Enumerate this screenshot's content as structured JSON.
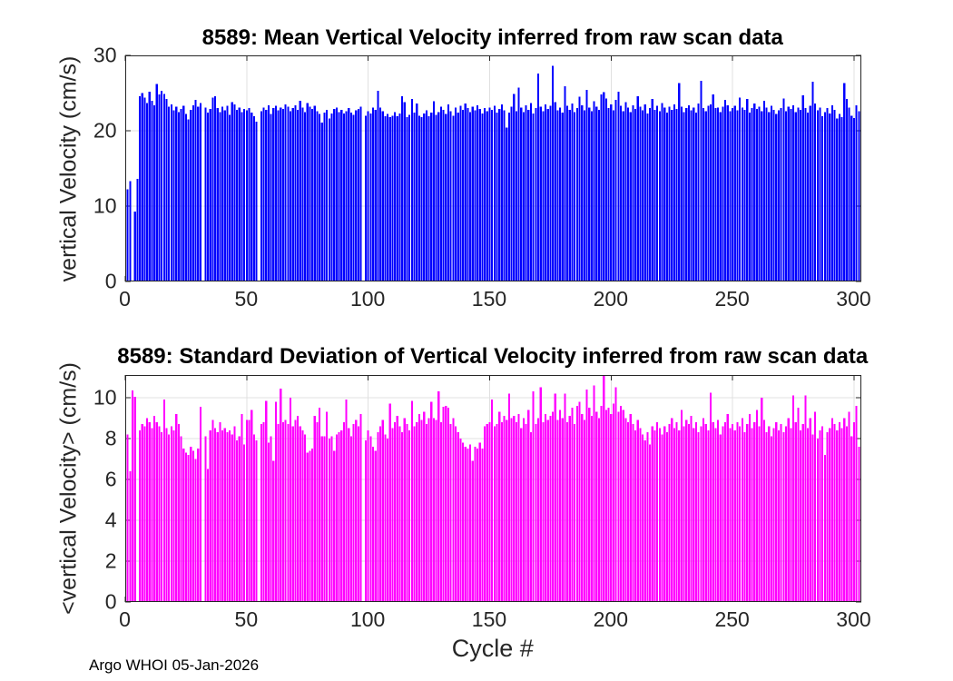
{
  "figure": {
    "footer": "Argo WHOI 05-Jan-2026"
  },
  "chart_data": [
    {
      "type": "bar",
      "title": "8589: Mean Vertical Velocity inferred from raw scan data",
      "xlabel": "",
      "ylabel": "vertical Velocity (cm/s)",
      "bar_color": "#0000FF",
      "grid": true,
      "legend_position": "none",
      "xlim": [
        0,
        303
      ],
      "ylim": [
        0,
        30
      ],
      "xticks": [
        0,
        50,
        100,
        150,
        200,
        250,
        300
      ],
      "yticks": [
        0,
        10,
        20,
        30
      ],
      "x_is_cycle_number": true,
      "first_cycle": 1,
      "values": [
        12.2,
        13.3,
        0,
        9.3,
        13.6,
        24.6,
        25.0,
        24.4,
        23.7,
        25.2,
        24.0,
        23.4,
        26.2,
        24.8,
        25.3,
        24.9,
        24.2,
        23.2,
        23.5,
        22.7,
        23.2,
        22.5,
        22.9,
        23.3,
        22.2,
        21.5,
        22.8,
        23.4,
        24.1,
        23.2,
        23.7,
        0,
        23.1,
        22.4,
        22.9,
        24.4,
        24.6,
        23.0,
        22.5,
        23.2,
        22.7,
        23.3,
        22.1,
        23.8,
        23.5,
        22.8,
        23.1,
        22.5,
        22.9,
        22.7,
        23.0,
        22.4,
        21.9,
        21.2,
        0,
        22.6,
        23.1,
        22.8,
        23.4,
        22.2,
        23.0,
        23.3,
        22.7,
        23.1,
        22.9,
        23.5,
        23.2,
        22.6,
        23.0,
        23.4,
        22.8,
        24.0,
        23.1,
        22.5,
        23.7,
        23.2,
        22.9,
        23.3,
        22.6,
        22.2,
        21.1,
        22.4,
        22.8,
        21.6,
        22.3,
        22.9,
        23.1,
        22.5,
        22.8,
        22.3,
        22.6,
        23.0,
        22.4,
        22.1,
        22.7,
        22.9,
        23.2,
        0,
        22.0,
        22.6,
        22.3,
        23.1,
        22.8,
        25.3,
        23.1,
        22.6,
        21.9,
        22.2,
        21.8,
        22.0,
        22.5,
        21.9,
        22.3,
        24.6,
        23.8,
        21.8,
        22.1,
        24.2,
        22.4,
        23.6,
        22.0,
        21.8,
        22.3,
        22.7,
        21.9,
        22.4,
        23.9,
        22.1,
        22.5,
        23.2,
        22.8,
        22.2,
        23.5,
        22.6,
        22.0,
        23.1,
        22.4,
        23.3,
        22.8,
        23.6,
        23.0,
        22.5,
        23.2,
        22.7,
        23.4,
        22.9,
        22.3,
        23.0,
        22.6,
        23.1,
        22.8,
        23.3,
        22.4,
        22.9,
        23.5,
        22.7,
        20.4,
        22.4,
        23.2,
        24.9,
        22.6,
        25.7,
        23.1,
        22.5,
        23.4,
        22.8,
        23.7,
        22.3,
        23.0,
        27.6,
        23.2,
        22.6,
        23.5,
        22.9,
        23.3,
        28.6,
        23.8,
        22.7,
        23.1,
        22.4,
        25.9,
        23.3,
        22.8,
        23.6,
        22.5,
        23.0,
        24.5,
        23.4,
        22.7,
        25.4,
        23.1,
        22.6,
        23.9,
        23.2,
        22.8,
        24.8,
        25.1,
        24.3,
        23.0,
        23.5,
        22.7,
        24.1,
        25.2,
        23.3,
        22.6,
        23.8,
        23.1,
        22.5,
        23.4,
        22.9,
        24.6,
        23.2,
        22.7,
        23.5,
        22.3,
        23.0,
        24.2,
        22.8,
        23.3,
        22.6,
        23.7,
        23.1,
        22.4,
        23.2,
        22.8,
        23.5,
        22.9,
        26.3,
        23.2,
        22.5,
        23.0,
        23.4,
        22.7,
        23.1,
        22.4,
        23.6,
        26.6,
        23.0,
        22.6,
        23.3,
        23.5,
        24.8,
        23.0,
        23.1,
        22.5,
        23.2,
        24.1,
        23.4,
        22.6,
        23.0,
        23.3,
        22.7,
        24.4,
        23.1,
        22.8,
        24.2,
        22.4,
        23.0,
        23.6,
        22.9,
        23.2,
        22.6,
        24.0,
        23.1,
        22.5,
        23.3,
        22.8,
        22.2,
        22.7,
        23.0,
        24.3,
        22.6,
        23.2,
        22.9,
        23.4,
        22.5,
        23.1,
        22.8,
        24.7,
        23.0,
        22.4,
        23.3,
        26.5,
        23.6,
        22.7,
        23.1,
        21.9,
        22.5,
        23.0,
        22.3,
        23.4,
        22.8,
        21.6,
        22.2,
        21.8,
        26.3,
        24.2,
        23.1,
        22.0,
        21.7,
        23.4,
        22.6
      ]
    },
    {
      "type": "bar",
      "title": "8589: Standard Deviation of Vertical Velocity inferred from raw scan data",
      "xlabel": "Cycle #",
      "ylabel": "<vertical Velocity> (cm/s)",
      "bar_color": "#FF00FF",
      "grid": true,
      "legend_position": "none",
      "xlim": [
        0,
        303
      ],
      "ylim": [
        0,
        11.11
      ],
      "xticks": [
        0,
        50,
        100,
        150,
        200,
        250,
        300
      ],
      "yticks": [
        0,
        2,
        4,
        6,
        8,
        10
      ],
      "x_is_cycle_number": true,
      "first_cycle": 1,
      "values": [
        8.2,
        6.4,
        10.35,
        10.05,
        0,
        8.4,
        8.7,
        8.6,
        9.0,
        8.8,
        8.5,
        9.1,
        8.8,
        8.6,
        8.3,
        9.9,
        8.5,
        8.2,
        8.6,
        8.4,
        9.2,
        8.7,
        8.1,
        7.5,
        7.3,
        7.2,
        7.6,
        7.4,
        7.0,
        7.5,
        9.55,
        0,
        8.1,
        6.5,
        8.4,
        8.9,
        8.5,
        8.3,
        8.8,
        8.4,
        8.5,
        8.3,
        8.4,
        8.2,
        8.6,
        7.9,
        8.1,
        9.2,
        7.7,
        8.9,
        8.9,
        9.4,
        8.2,
        7.9,
        0,
        8.7,
        8.8,
        9.85,
        7.8,
        8.1,
        6.9,
        9.8,
        8.7,
        10.45,
        8.8,
        8.9,
        8.7,
        10.0,
        8.6,
        8.9,
        9.1,
        8.6,
        8.4,
        8.2,
        7.3,
        7.4,
        7.5,
        9.1,
        8.8,
        9.5,
        8.1,
        8.1,
        9.3,
        8.0,
        8.1,
        7.4,
        8.2,
        8.3,
        8.4,
        8.8,
        9.9,
        8.5,
        8.1,
        8.7,
        8.9,
        8.6,
        9.2,
        0,
        7.9,
        8.4,
        8.1,
        7.6,
        7.4,
        8.3,
        8.6,
        8.9,
        8.2,
        8.0,
        9.7,
        8.5,
        8.8,
        9.1,
        8.6,
        8.3,
        9.0,
        8.7,
        8.4,
        9.85,
        8.6,
        8.8,
        9.2,
        8.9,
        9.3,
        8.7,
        9.0,
        9.8,
        9.0,
        8.9,
        10.3,
        8.8,
        9.55,
        9.6,
        9.5,
        8.7,
        9.0,
        8.6,
        8.3,
        8.0,
        7.8,
        7.6,
        7.5,
        7.7,
        6.9,
        7.6,
        7.5,
        7.8,
        7.5,
        8.6,
        8.7,
        8.8,
        9.9,
        8.6,
        8.7,
        9.3,
        8.8,
        9.1,
        8.9,
        10.2,
        9.0,
        9.1,
        8.8,
        9.2,
        8.5,
        9.0,
        8.7,
        9.4,
        8.3,
        10.3,
        8.7,
        9.0,
        10.5,
        8.8,
        9.2,
        8.9,
        9.1,
        9.3,
        10.2,
        8.9,
        9.4,
        9.0,
        10.2,
        8.8,
        9.1,
        9.5,
        8.7,
        9.6,
        9.8,
        9.2,
        8.9,
        10.4,
        9.5,
        9.1,
        10.6,
        9.3,
        9.0,
        9.6,
        11.1,
        9.4,
        9.5,
        9.2,
        9.7,
        10.5,
        9.3,
        9.6,
        9.4,
        9.0,
        8.8,
        9.2,
        8.7,
        8.4,
        8.9,
        8.5,
        8.2,
        7.9,
        8.3,
        7.7,
        8.6,
        8.4,
        8.8,
        8.5,
        8.2,
        8.6,
        8.3,
        8.7,
        9.0,
        8.5,
        8.8,
        8.4,
        9.4,
        8.6,
        8.9,
        8.7,
        9.1,
        8.5,
        8.8,
        8.3,
        8.6,
        9.0,
        8.7,
        8.4,
        10.25,
        8.8,
        8.5,
        8.9,
        8.2,
        8.6,
        8.8,
        9.2,
        8.5,
        8.7,
        8.4,
        8.8,
        8.6,
        9.0,
        8.3,
        8.7,
        9.2,
        8.5,
        8.8,
        9.4,
        8.6,
        10.0,
        8.9,
        8.3,
        8.6,
        8.1,
        8.5,
        8.8,
        8.4,
        8.7,
        8.3,
        8.6,
        9.0,
        8.5,
        10.1,
        8.8,
        9.5,
        8.4,
        8.7,
        10.1,
        8.5,
        9.0,
        8.2,
        9.3,
        8.0,
        8.4,
        8.6,
        7.2,
        8.3,
        8.5,
        9.0,
        8.7,
        8.4,
        8.8,
        8.5,
        9.0,
        8.6,
        9.3,
        8.1,
        8.8,
        9.6,
        7.6
      ]
    }
  ]
}
